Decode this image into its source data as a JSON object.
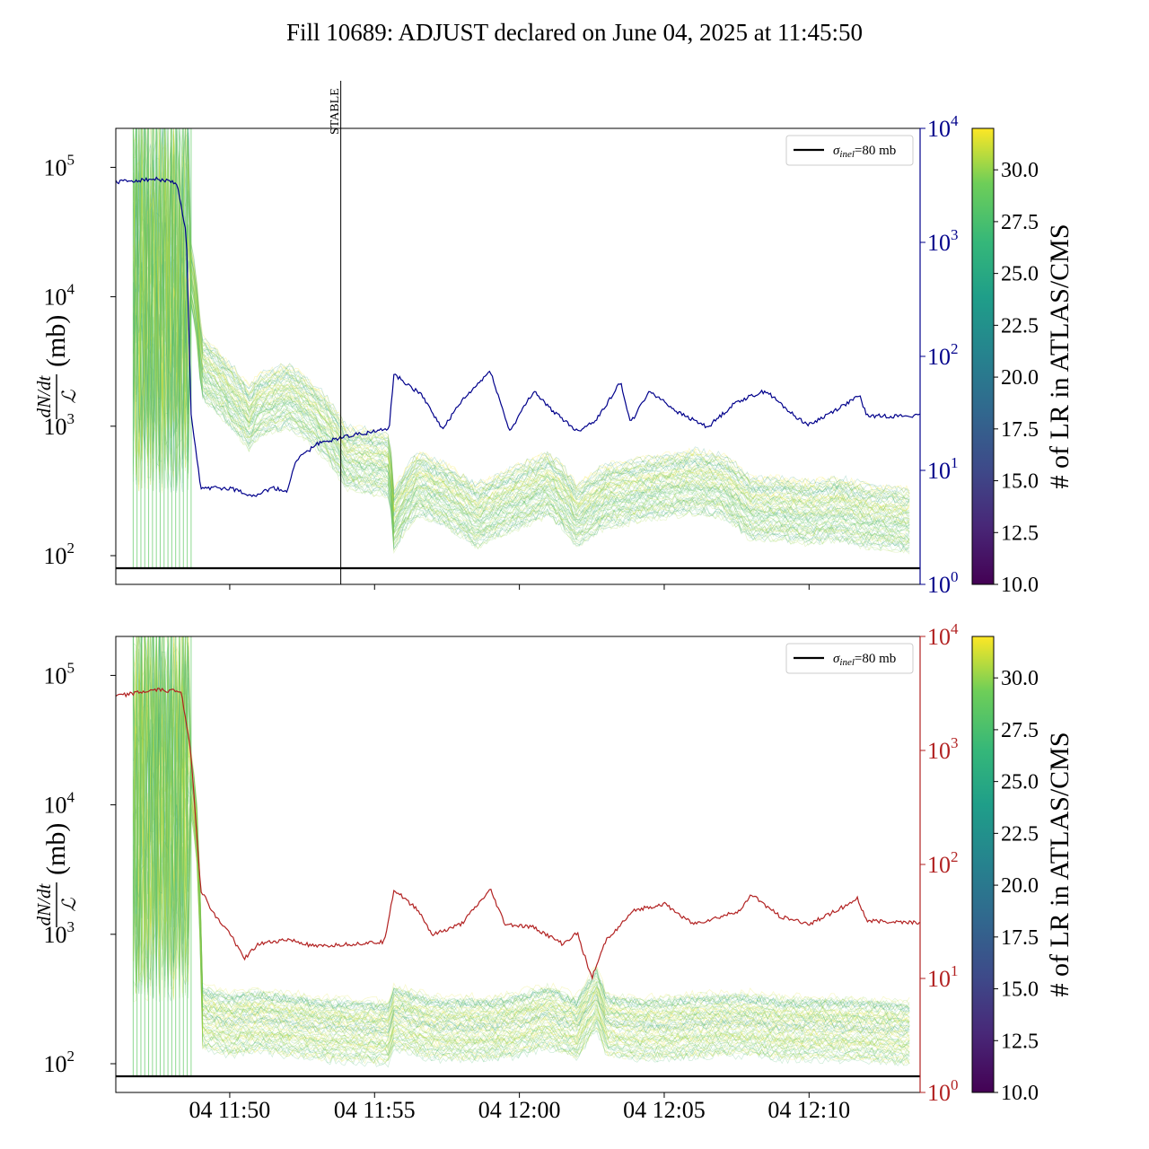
{
  "title": "Fill 10689: ADJUST declared on June 04, 2025 at 11:45:50",
  "colors": {
    "top_right_axis": "#00008b",
    "bottom_right_axis": "#b22222",
    "reference_line": "#000000",
    "colormap": [
      "#440154",
      "#3b528b",
      "#21918c",
      "#5ec962",
      "#fde725"
    ]
  },
  "chart_data": [
    {
      "type": "line",
      "panel": "top",
      "ylabel_num": "dN/dt",
      "ylabel_den": "ℒ",
      "ylabel_unit": "(mb)",
      "yscale": "log",
      "ylim": [
        60,
        200000
      ],
      "yticks": [
        {
          "base": "10",
          "exp": "2"
        },
        {
          "base": "10",
          "exp": "3"
        },
        {
          "base": "10",
          "exp": "4"
        },
        {
          "base": "10",
          "exp": "5"
        }
      ],
      "xtick_labels": [],
      "right_axis": {
        "scale": "log",
        "ylim": [
          1,
          10000
        ],
        "ticks": [
          {
            "base": "10",
            "exp": "0"
          },
          {
            "base": "10",
            "exp": "1"
          },
          {
            "base": "10",
            "exp": "2"
          },
          {
            "base": "10",
            "exp": "3"
          },
          {
            "base": "10",
            "exp": "4"
          }
        ],
        "series_points": [
          [
            "11:46:04",
            3400
          ],
          [
            "11:47:30",
            3600
          ],
          [
            "11:48:10",
            3300
          ],
          [
            "11:48:30",
            1200
          ],
          [
            "11:48:40",
            30
          ],
          [
            "11:49:00",
            7
          ],
          [
            "11:50:00",
            7
          ],
          [
            "11:50:50",
            6
          ],
          [
            "11:51:30",
            7
          ],
          [
            "11:52:00",
            6.5
          ],
          [
            "11:52:15",
            12
          ],
          [
            "11:53:00",
            17
          ],
          [
            "11:54:00",
            20
          ],
          [
            "11:55:30",
            23
          ],
          [
            "11:55:40",
            70
          ],
          [
            "11:56:40",
            45
          ],
          [
            "11:57:20",
            23
          ],
          [
            "11:58:00",
            40
          ],
          [
            "11:59:00",
            75
          ],
          [
            "11:59:20",
            40
          ],
          [
            "11:59:40",
            22
          ],
          [
            "12:00:30",
            50
          ],
          [
            "12:01:00",
            36
          ],
          [
            "12:02:00",
            22
          ],
          [
            "12:02:40",
            28
          ],
          [
            "12:03:30",
            60
          ],
          [
            "12:03:50",
            26
          ],
          [
            "12:04:30",
            50
          ],
          [
            "12:05:30",
            32
          ],
          [
            "12:06:30",
            24
          ],
          [
            "12:07:30",
            40
          ],
          [
            "12:08:30",
            50
          ],
          [
            "12:09:30",
            30
          ],
          [
            "12:10:00",
            25
          ],
          [
            "12:11:00",
            35
          ],
          [
            "12:11:45",
            45
          ],
          [
            "12:12:00",
            30
          ],
          [
            "12:13:50",
            30
          ]
        ]
      },
      "reference_line": {
        "label": "σinel=80 mb",
        "sym": "σ",
        "sub": "inel",
        "rest": "=80 mb",
        "value": 80
      },
      "vline": {
        "label": "STABLE",
        "x": "11:53:50"
      },
      "band_profile": [
        [
          "11:46:40",
          100
        ],
        [
          "11:48:40",
          100
        ],
        [
          "11:49:00",
          20
        ],
        [
          "11:50:00",
          12
        ],
        [
          "11:50:40",
          8
        ],
        [
          "11:51:00",
          10
        ],
        [
          "11:52:00",
          12
        ],
        [
          "11:53:00",
          8
        ],
        [
          "11:54:00",
          4
        ],
        [
          "11:55:30",
          3.5
        ],
        [
          "11:55:40",
          1.3
        ],
        [
          "11:56:30",
          2.5
        ],
        [
          "11:57:30",
          2
        ],
        [
          "11:58:30",
          1.4
        ],
        [
          "11:59:30",
          1.8
        ],
        [
          "12:00:30",
          2.2
        ],
        [
          "12:01:00",
          2.5
        ],
        [
          "12:02:00",
          1.4
        ],
        [
          "12:03:00",
          2
        ],
        [
          "12:04:00",
          2.2
        ],
        [
          "12:05:00",
          2.4
        ],
        [
          "12:06:00",
          2.6
        ],
        [
          "12:07:00",
          2.4
        ],
        [
          "12:08:00",
          1.6
        ],
        [
          "12:09:00",
          1.6
        ],
        [
          "12:10:00",
          1.5
        ],
        [
          "12:11:00",
          1.6
        ],
        [
          "12:12:00",
          1.4
        ],
        [
          "12:13:30",
          1.3
        ]
      ],
      "colorbar": {
        "label": "# of LR in ATLAS/CMS",
        "range": [
          10,
          32
        ],
        "ticks": [
          "10.0",
          "12.5",
          "15.0",
          "17.5",
          "20.0",
          "22.5",
          "25.0",
          "27.5",
          "30.0"
        ]
      }
    },
    {
      "type": "line",
      "panel": "bottom",
      "ylabel_num": "dN/dt",
      "ylabel_den": "ℒ",
      "ylabel_unit": "(mb)",
      "yscale": "log",
      "ylim": [
        60,
        200000
      ],
      "yticks": [
        {
          "base": "10",
          "exp": "2"
        },
        {
          "base": "10",
          "exp": "3"
        },
        {
          "base": "10",
          "exp": "4"
        },
        {
          "base": "10",
          "exp": "5"
        }
      ],
      "xtick_labels": [
        {
          "label": "04 11:50",
          "t": "11:50:00"
        },
        {
          "label": "04 11:55",
          "t": "11:55:00"
        },
        {
          "label": "04 12:00",
          "t": "12:00:00"
        },
        {
          "label": "04 12:05",
          "t": "12:05:00"
        },
        {
          "label": "04 12:10",
          "t": "12:10:00"
        }
      ],
      "right_axis": {
        "scale": "log",
        "ylim": [
          1,
          10000
        ],
        "ticks": [
          {
            "base": "10",
            "exp": "0"
          },
          {
            "base": "10",
            "exp": "1"
          },
          {
            "base": "10",
            "exp": "2"
          },
          {
            "base": "10",
            "exp": "3"
          },
          {
            "base": "10",
            "exp": "4"
          }
        ],
        "series_points": [
          [
            "11:46:04",
            3000
          ],
          [
            "11:47:30",
            3400
          ],
          [
            "11:48:20",
            3300
          ],
          [
            "11:48:40",
            900
          ],
          [
            "11:49:00",
            60
          ],
          [
            "11:49:30",
            35
          ],
          [
            "11:50:00",
            25
          ],
          [
            "11:50:30",
            15
          ],
          [
            "11:51:00",
            20
          ],
          [
            "11:52:00",
            22
          ],
          [
            "11:53:00",
            19
          ],
          [
            "11:54:00",
            20
          ],
          [
            "11:55:20",
            21
          ],
          [
            "11:55:40",
            60
          ],
          [
            "11:56:30",
            40
          ],
          [
            "11:57:00",
            24
          ],
          [
            "11:58:00",
            30
          ],
          [
            "11:59:00",
            60
          ],
          [
            "11:59:30",
            30
          ],
          [
            "12:00:30",
            28
          ],
          [
            "12:01:30",
            20
          ],
          [
            "12:02:00",
            25
          ],
          [
            "12:02:30",
            10
          ],
          [
            "12:03:00",
            22
          ],
          [
            "12:04:00",
            40
          ],
          [
            "12:05:00",
            45
          ],
          [
            "12:06:00",
            30
          ],
          [
            "12:07:00",
            35
          ],
          [
            "12:07:40",
            40
          ],
          [
            "12:08:00",
            55
          ],
          [
            "12:09:00",
            35
          ],
          [
            "12:10:00",
            30
          ],
          [
            "12:11:00",
            40
          ],
          [
            "12:11:40",
            50
          ],
          [
            "12:12:00",
            32
          ],
          [
            "12:13:50",
            31
          ]
        ]
      },
      "reference_line": {
        "label": "σinel=80 mb",
        "sym": "σ",
        "sub": "inel",
        "rest": "=80 mb",
        "value": 80
      },
      "band_profile": [
        [
          "11:46:40",
          100
        ],
        [
          "11:48:40",
          100
        ],
        [
          "11:49:00",
          1.6
        ],
        [
          "11:50:00",
          1.4
        ],
        [
          "11:51:00",
          1.5
        ],
        [
          "11:53:00",
          1.3
        ],
        [
          "11:55:30",
          1.2
        ],
        [
          "11:55:40",
          1.6
        ],
        [
          "11:57:00",
          1.3
        ],
        [
          "11:59:00",
          1.3
        ],
        [
          "12:00:00",
          1.4
        ],
        [
          "12:01:00",
          1.6
        ],
        [
          "12:02:00",
          1.3
        ],
        [
          "12:02:40",
          2.2
        ],
        [
          "12:03:00",
          1.4
        ],
        [
          "12:04:00",
          1.3
        ],
        [
          "12:05:00",
          1.3
        ],
        [
          "12:07:00",
          1.4
        ],
        [
          "12:08:00",
          1.4
        ],
        [
          "12:09:00",
          1.3
        ],
        [
          "12:11:00",
          1.3
        ],
        [
          "12:13:30",
          1.2
        ]
      ],
      "colorbar": {
        "label": "# of LR in ATLAS/CMS",
        "range": [
          10,
          32
        ],
        "ticks": [
          "10.0",
          "12.5",
          "15.0",
          "17.5",
          "20.0",
          "22.5",
          "25.0",
          "27.5",
          "30.0"
        ]
      }
    }
  ]
}
